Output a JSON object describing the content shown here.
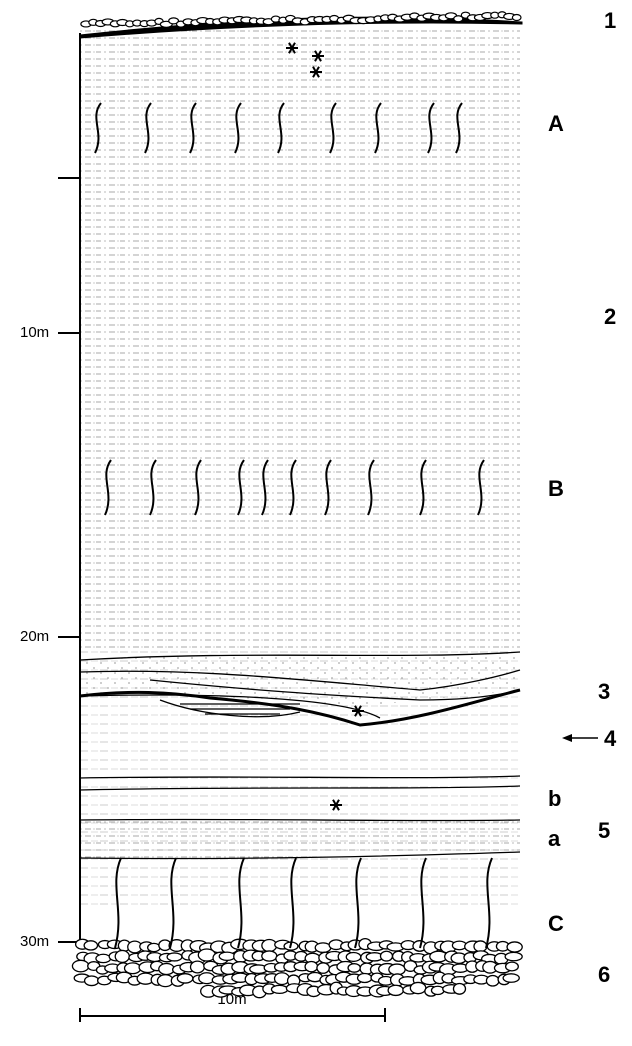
{
  "depth_labels": [
    "10m",
    "20m",
    "30m"
  ],
  "unit_numbers": [
    "1",
    "2",
    "3",
    "4",
    "5",
    "6"
  ],
  "letters": [
    "A",
    "B",
    "C",
    "b",
    "a"
  ],
  "scale_bar": "10m"
}
